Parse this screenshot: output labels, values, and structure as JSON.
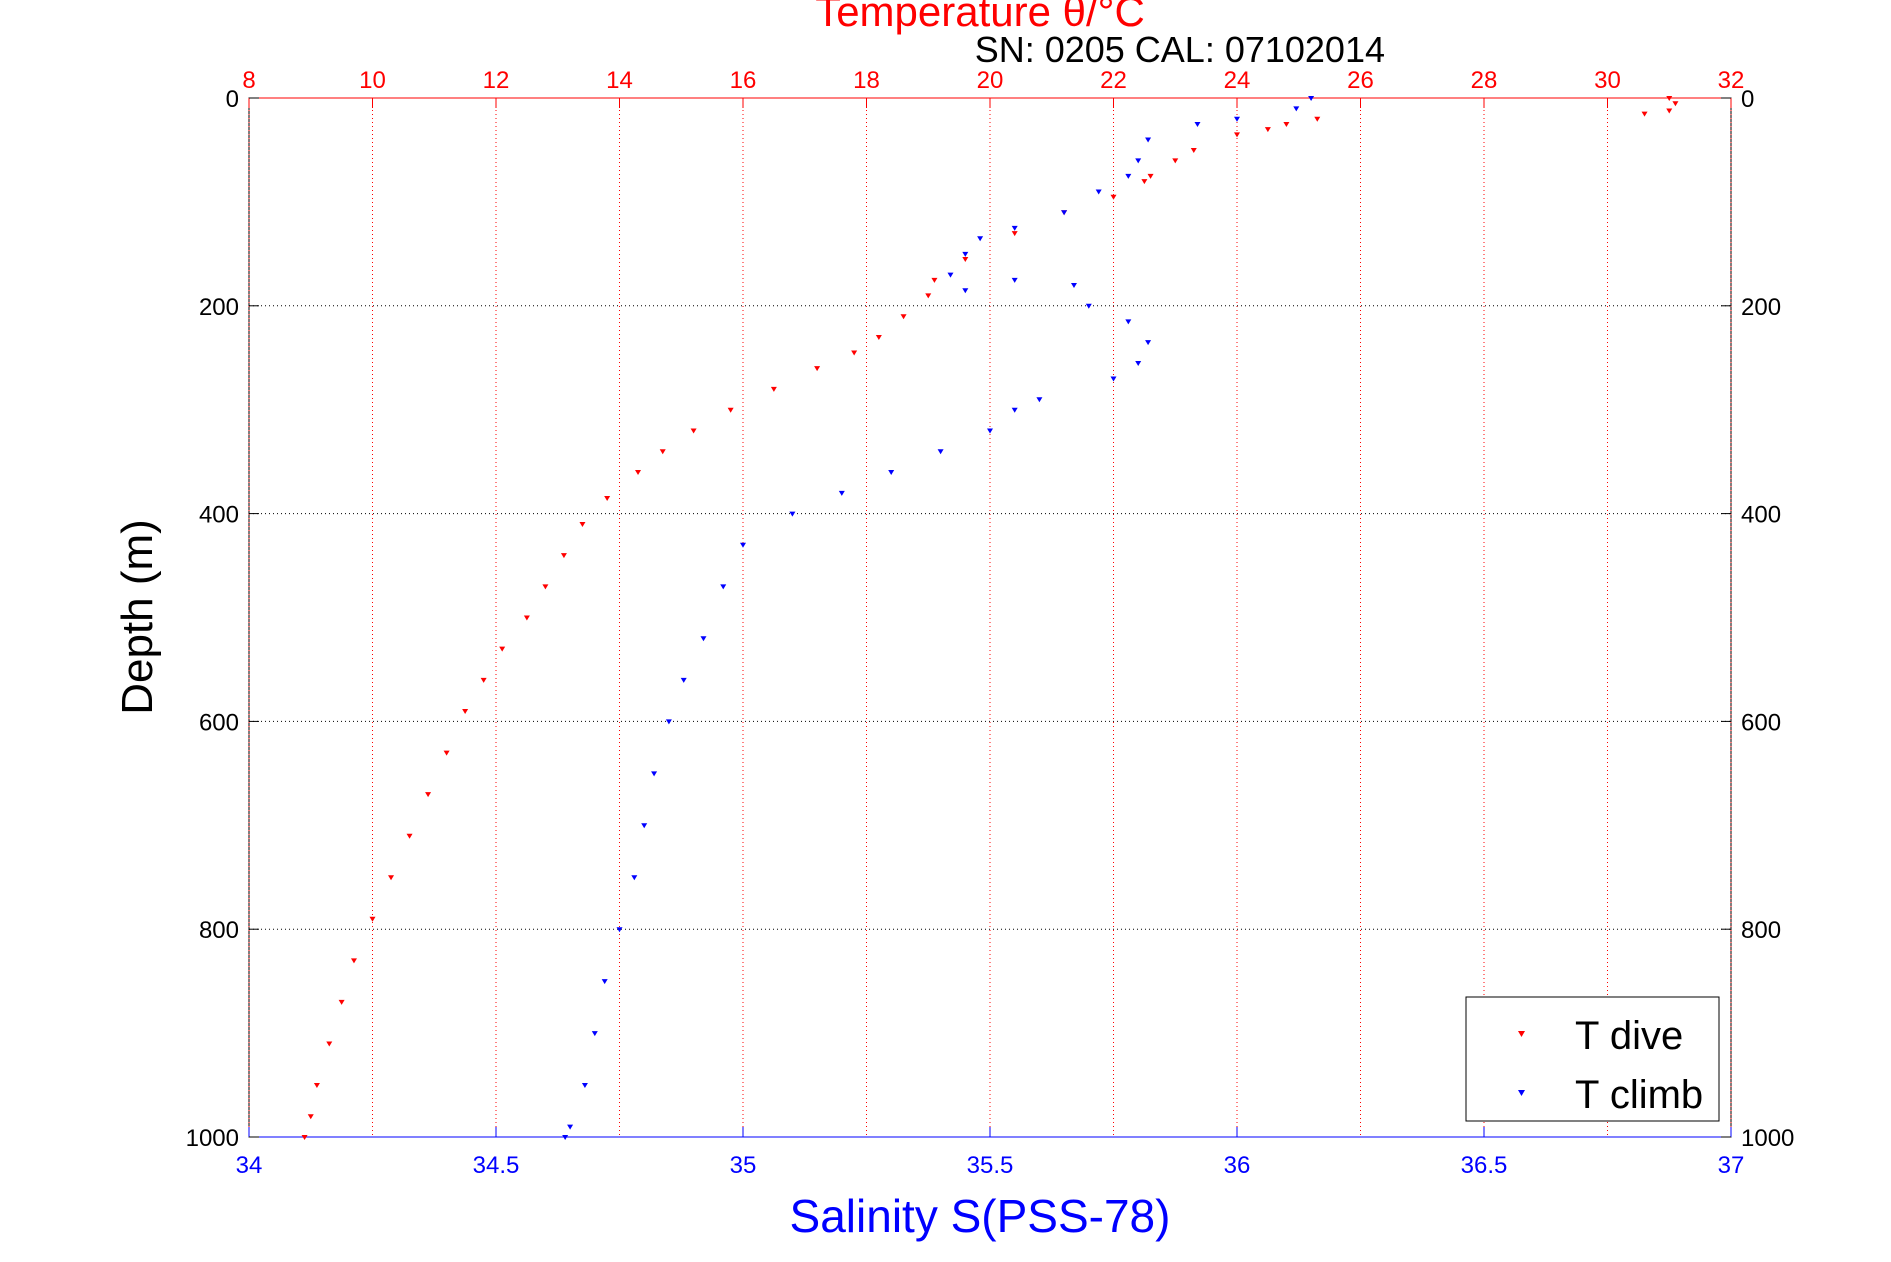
{
  "colors": {
    "dive": "#ff0000",
    "climb": "#0000ff",
    "axis_text": "#000000",
    "grid": "#000000",
    "temperature_axis": "#ff0000",
    "salinity_axis": "#0000ff"
  },
  "header": {
    "title": "Temperature θ/°C",
    "annotation": "SN: 0205  CAL: 07102014"
  },
  "chart_data": {
    "type": "scatter",
    "title": "Temperature θ/°C",
    "xlabel": "Salinity S(PSS-78)",
    "ylabel": "Depth (m)",
    "x_top": {
      "label": "Temperature θ/°C",
      "lim": [
        8,
        32
      ],
      "ticks": [
        "8",
        "10",
        "12",
        "14",
        "16",
        "18",
        "20",
        "22",
        "24",
        "26",
        "28",
        "30",
        "32"
      ]
    },
    "x_bottom": {
      "label": "Salinity S(PSS-78)",
      "lim": [
        34,
        37
      ],
      "ticks": [
        "34",
        "34.5",
        "35",
        "35.5",
        "36",
        "36.5",
        "37"
      ]
    },
    "y": {
      "label": "Depth (m)",
      "lim": [
        0,
        1000
      ],
      "reversed": true,
      "ticks": [
        "0",
        "200",
        "400",
        "600",
        "800",
        "1000"
      ]
    },
    "grid": true,
    "legend": {
      "placement": "bottom-right",
      "entries": [
        "T dive",
        "T climb"
      ]
    },
    "series": [
      {
        "name": "T dive",
        "axis": "temperature",
        "color": "#ff0000",
        "marker": "triangle-down",
        "points": [
          [
            31.0,
            0
          ],
          [
            31.1,
            5
          ],
          [
            31.0,
            12
          ],
          [
            30.6,
            15
          ],
          [
            25.3,
            20
          ],
          [
            24.8,
            25
          ],
          [
            24.5,
            30
          ],
          [
            24.0,
            35
          ],
          [
            23.3,
            50
          ],
          [
            23.0,
            60
          ],
          [
            22.6,
            75
          ],
          [
            22.5,
            80
          ],
          [
            22.0,
            95
          ],
          [
            21.2,
            110
          ],
          [
            20.4,
            130
          ],
          [
            19.6,
            155
          ],
          [
            19.1,
            175
          ],
          [
            19.0,
            190
          ],
          [
            18.6,
            210
          ],
          [
            18.2,
            230
          ],
          [
            17.8,
            245
          ],
          [
            17.2,
            260
          ],
          [
            16.5,
            280
          ],
          [
            15.8,
            300
          ],
          [
            15.2,
            320
          ],
          [
            14.7,
            340
          ],
          [
            14.3,
            360
          ],
          [
            13.8,
            385
          ],
          [
            13.4,
            410
          ],
          [
            13.1,
            440
          ],
          [
            12.8,
            470
          ],
          [
            12.5,
            500
          ],
          [
            12.1,
            530
          ],
          [
            11.8,
            560
          ],
          [
            11.5,
            590
          ],
          [
            11.2,
            630
          ],
          [
            10.9,
            670
          ],
          [
            10.6,
            710
          ],
          [
            10.3,
            750
          ],
          [
            10.0,
            790
          ],
          [
            9.7,
            830
          ],
          [
            9.5,
            870
          ],
          [
            9.3,
            910
          ],
          [
            9.1,
            950
          ],
          [
            9.0,
            980
          ],
          [
            8.9,
            1000
          ]
        ]
      },
      {
        "name": "T climb",
        "axis": "salinity",
        "color": "#0000ff",
        "marker": "triangle-down",
        "points": [
          [
            36.15,
            0
          ],
          [
            36.12,
            10
          ],
          [
            36.0,
            20
          ],
          [
            35.92,
            25
          ],
          [
            35.82,
            40
          ],
          [
            35.8,
            60
          ],
          [
            35.78,
            75
          ],
          [
            35.72,
            90
          ],
          [
            35.65,
            110
          ],
          [
            35.55,
            125
          ],
          [
            35.48,
            135
          ],
          [
            35.45,
            150
          ],
          [
            35.42,
            170
          ],
          [
            35.45,
            185
          ],
          [
            35.55,
            175
          ],
          [
            35.67,
            180
          ],
          [
            35.7,
            200
          ],
          [
            35.78,
            215
          ],
          [
            35.82,
            235
          ],
          [
            35.8,
            255
          ],
          [
            35.75,
            270
          ],
          [
            35.6,
            290
          ],
          [
            35.55,
            300
          ],
          [
            35.5,
            320
          ],
          [
            35.4,
            340
          ],
          [
            35.3,
            360
          ],
          [
            35.2,
            380
          ],
          [
            35.1,
            400
          ],
          [
            35.0,
            430
          ],
          [
            34.96,
            470
          ],
          [
            34.92,
            520
          ],
          [
            34.88,
            560
          ],
          [
            34.85,
            600
          ],
          [
            34.82,
            650
          ],
          [
            34.8,
            700
          ],
          [
            34.78,
            750
          ],
          [
            34.75,
            800
          ],
          [
            34.72,
            850
          ],
          [
            34.7,
            900
          ],
          [
            34.68,
            950
          ],
          [
            34.65,
            990
          ],
          [
            34.64,
            1000
          ]
        ]
      }
    ]
  }
}
